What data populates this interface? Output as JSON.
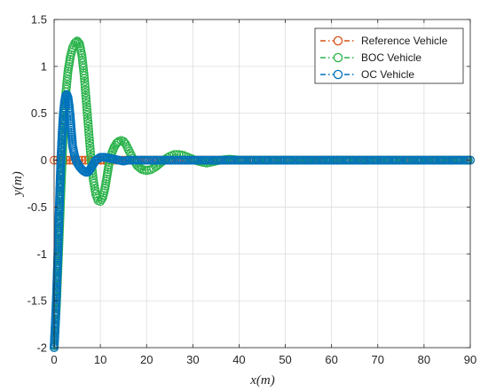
{
  "chart_data": {
    "type": "line",
    "title": "",
    "xlabel": "x(m)",
    "ylabel": "y(m)",
    "xlim": [
      0,
      90
    ],
    "ylim": [
      -2,
      1.5
    ],
    "xticks": [
      0,
      10,
      20,
      30,
      40,
      50,
      60,
      70,
      80,
      90
    ],
    "yticks": [
      -2,
      -1.5,
      -1,
      -0.5,
      0,
      0.5,
      1,
      1.5
    ],
    "grid": true,
    "legend_position": "top-right",
    "series": [
      {
        "name": "Reference Vehicle",
        "color": "#D95319",
        "marker": "circle",
        "line_style": "dash-dot",
        "x": [
          0,
          90
        ],
        "y": [
          0,
          0
        ]
      },
      {
        "name": "BOC Vehicle",
        "color": "#2AB34A",
        "marker": "circle",
        "line_style": "dash-dot",
        "x": [
          0,
          0.5,
          1,
          1.5,
          2,
          2.5,
          3,
          3.5,
          4,
          4.5,
          5,
          5.5,
          6,
          6.5,
          7,
          7.5,
          8,
          8.5,
          9,
          9.5,
          10,
          10.5,
          11,
          11.5,
          12,
          12.5,
          13,
          13.5,
          14,
          14.5,
          15,
          15.5,
          16,
          16.5,
          17,
          17.5,
          18,
          19,
          20,
          21,
          22,
          23,
          24,
          25,
          26,
          27,
          28,
          29,
          30,
          31,
          32,
          33,
          34,
          35,
          36,
          38,
          40,
          45,
          50,
          60,
          70,
          80,
          90
        ],
        "y": [
          -2,
          -1.55,
          -0.95,
          -0.3,
          0.3,
          0.7,
          0.95,
          1.1,
          1.2,
          1.25,
          1.27,
          1.24,
          1.12,
          0.9,
          0.6,
          0.3,
          0,
          -0.22,
          -0.36,
          -0.43,
          -0.44,
          -0.4,
          -0.3,
          -0.15,
          0,
          0.08,
          0.14,
          0.18,
          0.2,
          0.21,
          0.2,
          0.17,
          0.12,
          0.07,
          0.02,
          -0.02,
          -0.06,
          -0.1,
          -0.11,
          -0.1,
          -0.07,
          -0.03,
          0.01,
          0.04,
          0.06,
          0.06,
          0.05,
          0.03,
          0.01,
          -0.01,
          -0.02,
          -0.03,
          -0.02,
          -0.01,
          0,
          0.01,
          0,
          0,
          0,
          0,
          0,
          0,
          0
        ]
      },
      {
        "name": "OC Vehicle",
        "color": "#0072BD",
        "marker": "circle",
        "line_style": "dash-dot",
        "x": [
          0,
          0.25,
          0.5,
          0.75,
          1,
          1.25,
          1.5,
          1.75,
          2,
          2.25,
          2.5,
          2.75,
          3,
          3.25,
          3.5,
          3.75,
          4,
          4.5,
          5,
          5.5,
          6,
          6.5,
          7,
          7.5,
          8,
          8.5,
          9,
          10,
          11,
          12,
          13,
          14,
          15,
          16,
          18,
          20,
          25,
          30,
          40,
          50,
          60,
          70,
          80,
          90
        ],
        "y": [
          -2,
          -1.75,
          -1.45,
          -1.1,
          -0.7,
          -0.3,
          0.05,
          0.3,
          0.5,
          0.62,
          0.69,
          0.7,
          0.67,
          0.58,
          0.46,
          0.3,
          0.15,
          0.03,
          -0.03,
          -0.07,
          -0.1,
          -0.12,
          -0.13,
          -0.12,
          -0.08,
          -0.04,
          0,
          0.03,
          0.03,
          0.02,
          0.01,
          0,
          -0.01,
          0,
          0,
          0,
          0,
          0,
          0,
          0,
          0,
          0,
          0,
          0
        ]
      }
    ]
  }
}
